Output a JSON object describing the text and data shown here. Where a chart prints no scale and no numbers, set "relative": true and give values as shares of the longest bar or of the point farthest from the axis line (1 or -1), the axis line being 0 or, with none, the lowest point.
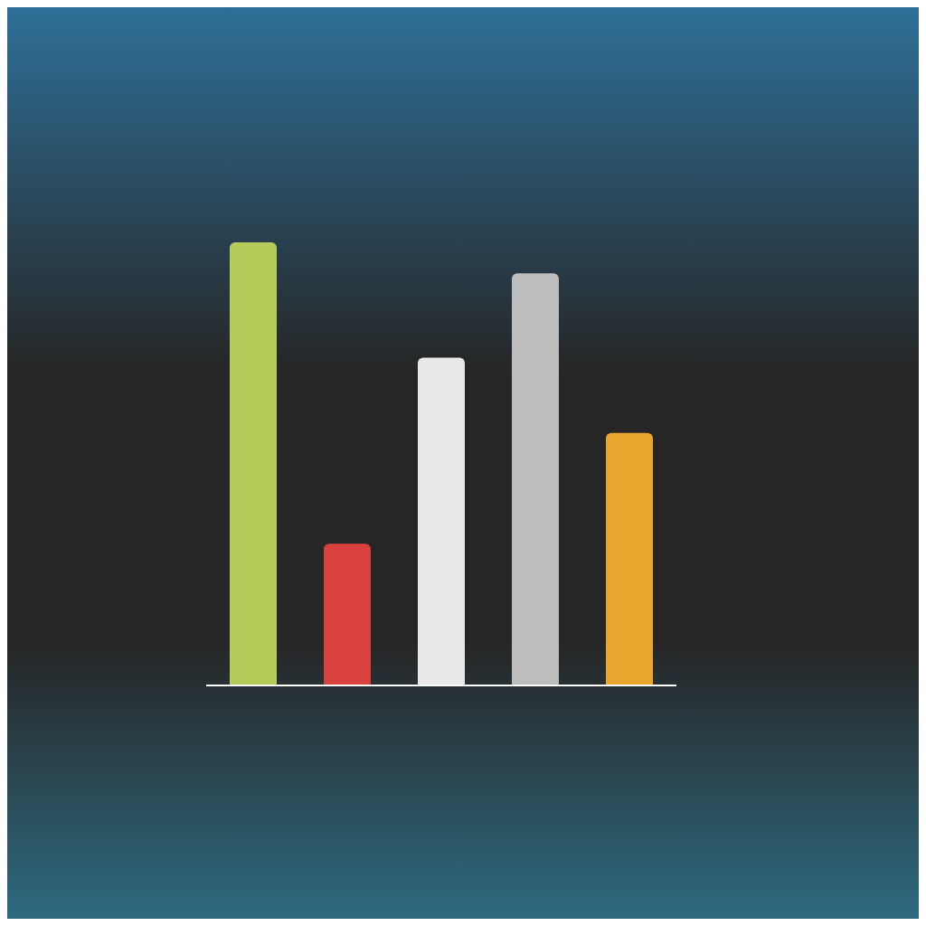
{
  "chart_data": {
    "type": "bar",
    "relative": true,
    "categories": [
      null,
      null,
      null,
      null,
      null
    ],
    "values": [
      1,
      0.32,
      0.74,
      0.93,
      0.57
    ],
    "colors": [
      "#b5cc5a",
      "#d9413f",
      "#e8e8e8",
      "#bdbdbd",
      "#e8a62e"
    ]
  }
}
